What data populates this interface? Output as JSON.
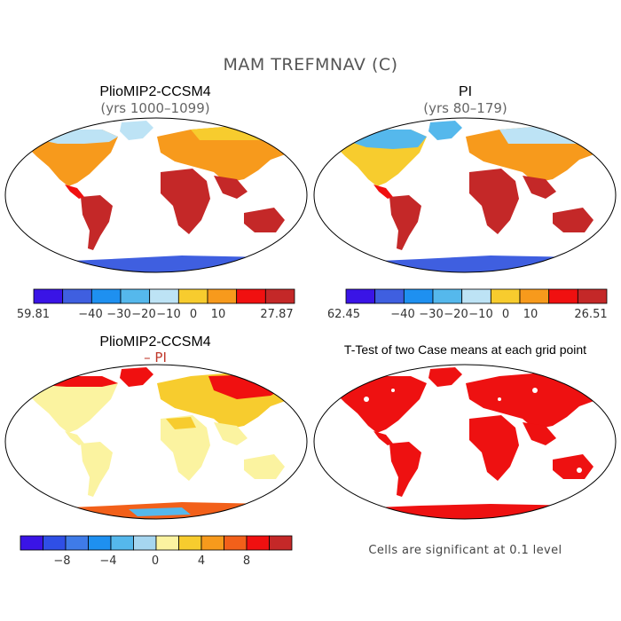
{
  "figure_title": "MAM TREFMNAV (C)",
  "panels": [
    {
      "title": "PlioMIP2-CCSM4",
      "subtitle": "(yrs 1000–1099)",
      "colorbar": {
        "colors": [
          "#3a14e6",
          "#3f5fe0",
          "#1e90f0",
          "#55b8ec",
          "#bde3f5",
          "#f7cc2e",
          "#f79a1c",
          "#f01010",
          "#c42828"
        ],
        "labels": [
          "−59.81",
          "−40",
          "−30",
          "−20",
          "−10",
          "0",
          "10",
          "27.87"
        ]
      }
    },
    {
      "title": "PI",
      "subtitle": "(yrs 80–179)",
      "colorbar": {
        "colors": [
          "#3a14e6",
          "#3f5fe0",
          "#1e90f0",
          "#55b8ec",
          "#bde3f5",
          "#f7cc2e",
          "#f79a1c",
          "#f01010",
          "#c42828"
        ],
        "labels": [
          "−62.45",
          "−40",
          "−30",
          "−20",
          "−10",
          "0",
          "10",
          "26.51"
        ]
      }
    },
    {
      "title": "PlioMIP2-CCSM4",
      "subtitle": "– PI",
      "colorbar": {
        "colors": [
          "#3a14e6",
          "#2f4fe6",
          "#3f7be8",
          "#1e90f0",
          "#55b8ec",
          "#a6d6f0",
          "#fbf3a0",
          "#f7cc2e",
          "#f79a1c",
          "#f2601a",
          "#f01010",
          "#c42828"
        ],
        "labels": [
          "−8",
          "−4",
          "0",
          "4",
          "8"
        ]
      }
    },
    {
      "title": "T-Test of two Case means at each grid point",
      "subtitle": "",
      "note": "Cells are significant at 0.1 level"
    }
  ],
  "colors": {
    "land_warm": "#e8341a",
    "ocean": "#ffffff",
    "significance": "#ee1111"
  }
}
